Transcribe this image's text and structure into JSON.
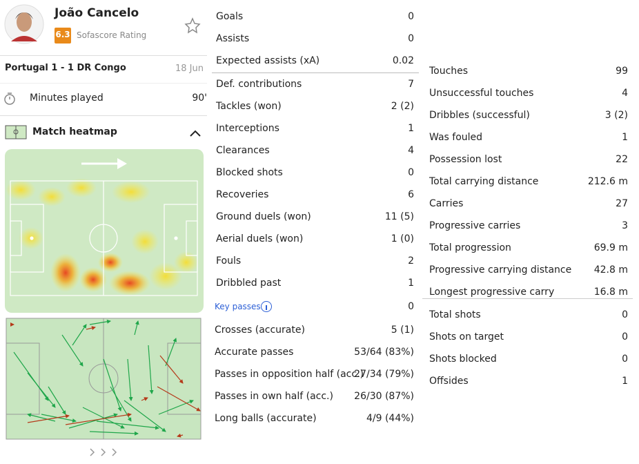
{
  "player": {
    "name": "João Cancelo",
    "rating": "6.3",
    "rating_label": "Sofascore Rating"
  },
  "match": {
    "title": "Portugal 1 - 1 DR Congo",
    "date": "18 Jun"
  },
  "minutes": {
    "label": "Minutes played",
    "value": "90'"
  },
  "heatmap": {
    "title": "Match heatmap"
  },
  "summary": [
    [
      "Goals",
      "0"
    ],
    [
      "Assists",
      "0"
    ],
    [
      "Expected assists (xA)",
      "0.02"
    ]
  ],
  "defence": [
    [
      "Def. contributions",
      "7"
    ],
    [
      "Tackles (won)",
      "2 (2)"
    ],
    [
      "Interceptions",
      "1"
    ],
    [
      "Clearances",
      "4"
    ],
    [
      "Blocked shots",
      "0"
    ],
    [
      "Recoveries",
      "6"
    ],
    [
      "Ground duels (won)",
      "11 (5)"
    ],
    [
      "Aerial duels (won)",
      "1 (0)"
    ],
    [
      "Fouls",
      "2"
    ],
    [
      "Dribbled past",
      "1"
    ]
  ],
  "key_passes": {
    "label": "Key passes",
    "value": "0"
  },
  "passing": [
    [
      "Crosses (accurate)",
      "5 (1)"
    ],
    [
      "Accurate passes",
      "53/64 (83%)"
    ],
    [
      "Passes in opposition half (acc.)",
      "27/34 (79%)"
    ],
    [
      "Passes in own half (acc.)",
      "26/30 (87%)"
    ],
    [
      "Long balls (accurate)",
      "4/9 (44%)"
    ]
  ],
  "possession": [
    [
      "Touches",
      "99"
    ],
    [
      "Unsuccessful touches",
      "4"
    ],
    [
      "Dribbles (successful)",
      "3 (2)"
    ],
    [
      "Was fouled",
      "1"
    ],
    [
      "Possession lost",
      "22"
    ],
    [
      "Total carrying distance",
      "212.6 m"
    ],
    [
      "Carries",
      "27"
    ],
    [
      "Progressive carries",
      "3"
    ],
    [
      "Total progression",
      "69.9 m"
    ],
    [
      "Progressive carrying distance",
      "42.8 m"
    ],
    [
      "Longest progressive carry",
      "16.8 m"
    ]
  ],
  "attack": [
    [
      "Total shots",
      "0"
    ],
    [
      "Shots on target",
      "0"
    ],
    [
      "Shots blocked",
      "0"
    ],
    [
      "Offsides",
      "1"
    ]
  ]
}
